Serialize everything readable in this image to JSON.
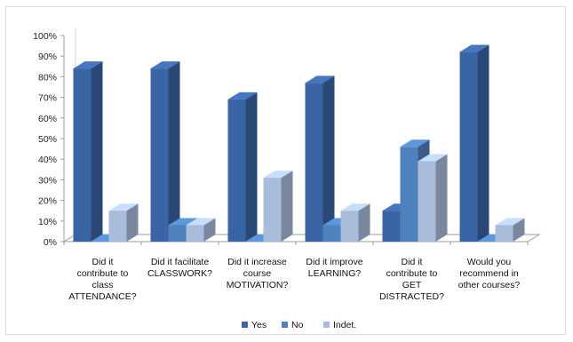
{
  "chart_data": {
    "type": "bar",
    "title": "",
    "categories": [
      [
        "Did it",
        "contribute to",
        "class",
        "ATTENDANCE?"
      ],
      [
        "Did it facilitate",
        "CLASSWORK?"
      ],
      [
        "Did it increase",
        "course",
        "MOTIVATION?"
      ],
      [
        "Did it improve",
        "LEARNING?"
      ],
      [
        "Did it",
        "contribute to",
        "GET",
        "DISTRACTED?"
      ],
      [
        "Would you",
        "recommend in",
        "other courses?"
      ]
    ],
    "series": [
      {
        "name": "Yes",
        "values": [
          84,
          84,
          69,
          77,
          15,
          92
        ]
      },
      {
        "name": "No",
        "values": [
          0,
          8,
          0,
          8,
          46,
          0
        ]
      },
      {
        "name": "Indet.",
        "values": [
          15,
          8,
          31,
          15,
          39,
          8
        ]
      }
    ],
    "ylim": [
      0,
      100
    ],
    "yticks": [
      "0%",
      "10%",
      "20%",
      "30%",
      "40%",
      "50%",
      "60%",
      "70%",
      "80%",
      "90%",
      "100%"
    ],
    "grid": false,
    "legend_position": "bottom",
    "three_d": true
  },
  "colors": {
    "Yes": "#3b64a4",
    "No": "#4f81bd",
    "Indet.": "#a9bcda",
    "axis": "#9e9e9e"
  }
}
